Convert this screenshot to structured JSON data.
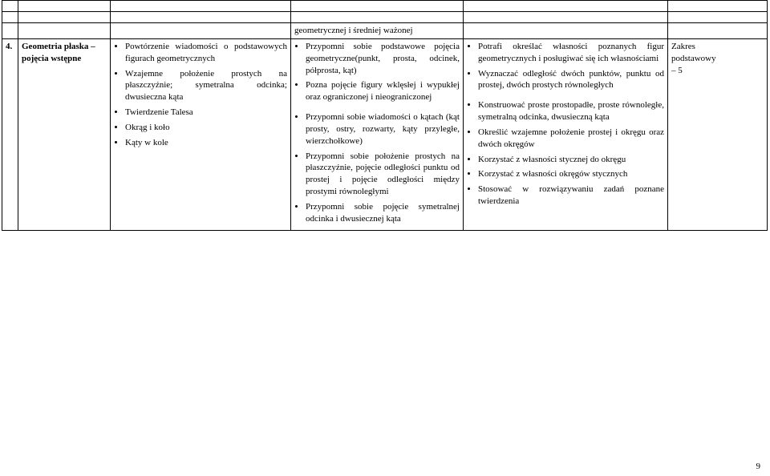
{
  "header_row": {
    "mid": "geometrycznej i średniej ważonej"
  },
  "row": {
    "num": "4.",
    "topic": "Geometria płaska – pojęcia wstępne",
    "left_items": [
      "Powtórzenie wiadomości o podstawowych figurach geometrycznych",
      "Wzajemne położenie prostych na płaszczyźnie; symetralna odcinka; dwusieczna kąta",
      "Twierdzenie Talesa",
      "Okrąg i koło",
      "Kąty w kole"
    ],
    "mid_items": [
      "Przypomni sobie podstawowe pojęcia geometryczne(punkt, prosta, odcinek, półprosta, kąt)",
      "Pozna pojęcie figury wklęsłej i wypukłej oraz ograniczonej i nieograniczonej",
      "Przypomni sobie wiadomości o kątach (kąt prosty, ostry, rozwarty, kąty przyległe, wierzchołkowe)",
      "Przypomni sobie położenie prostych na płaszczyźnie, pojęcie odległości punktu od prostej i pojęcie odległości między prostymi równoległymi",
      "Przypomni sobie pojęcie symetralnej odcinka i dwusiecznej kąta"
    ],
    "right_items": [
      "Potrafi określać własności poznanych figur geometrycznych i posługiwać się ich własnościami",
      "Wyznaczać odległość dwóch punktów, punktu od prostej, dwóch prostych równoległych",
      "Konstruować proste prostopadłe, proste równoległe, symetralną odcinka, dwusieczną kąta",
      "Określić wzajemne położenie prostej i okręgu oraz dwóch okręgów",
      "Korzystać z własności stycznej do okręgu",
      "Korzystać z własności okręgów stycznych",
      "Stosować w rozwiązywaniu zadań poznane twierdzenia"
    ],
    "scope_line1": "Zakres",
    "scope_line2": "podstawowy",
    "scope_line3": "– 5"
  },
  "page_number": "9"
}
